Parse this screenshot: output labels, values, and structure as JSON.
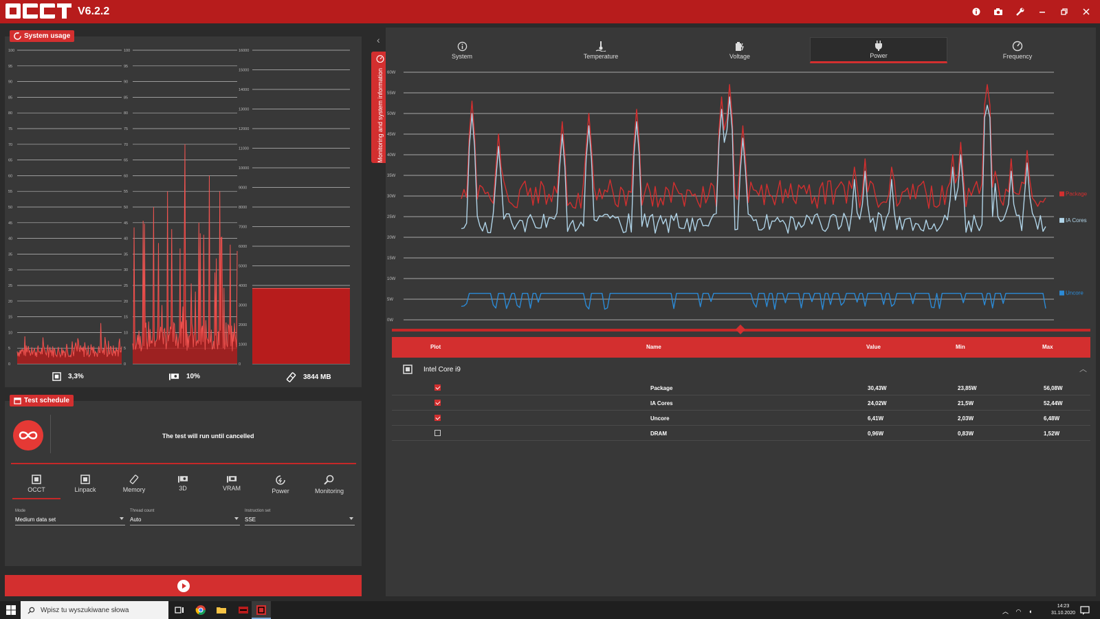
{
  "app": {
    "version": "V6.2.2"
  },
  "system_usage": {
    "title": "System usage",
    "cpu": {
      "label": "3,3%",
      "yticks": [
        "100",
        "95",
        "90",
        "85",
        "80",
        "75",
        "70",
        "65",
        "60",
        "55",
        "50",
        "45",
        "40",
        "35",
        "30",
        "25",
        "20",
        "15",
        "10",
        "5",
        "0"
      ]
    },
    "gpu": {
      "label": "10%",
      "yticks": [
        "100",
        "95",
        "90",
        "85",
        "80",
        "75",
        "70",
        "65",
        "60",
        "55",
        "50",
        "45",
        "40",
        "35",
        "30",
        "25",
        "20",
        "15",
        "10",
        "5",
        "0"
      ]
    },
    "memory": {
      "label": "3844 MB",
      "yticks": [
        "16000",
        "15000",
        "14000",
        "13000",
        "12000",
        "11000",
        "10000",
        "9000",
        "8000",
        "7000",
        "6000",
        "5000",
        "4000",
        "3000",
        "2000",
        "1000",
        "0"
      ]
    }
  },
  "side_tab": {
    "label": "Monitoring and system information"
  },
  "monitor_tabs": [
    {
      "label": "System",
      "icon": "info-icon"
    },
    {
      "label": "Temperature",
      "icon": "thermometer-icon"
    },
    {
      "label": "Voltage",
      "icon": "battery-icon"
    },
    {
      "label": "Power",
      "icon": "plug-icon"
    },
    {
      "label": "Frequency",
      "icon": "gauge-icon"
    }
  ],
  "power_chart": {
    "yticks": [
      "60W",
      "55W",
      "50W",
      "45W",
      "40W",
      "35W",
      "30W",
      "25W",
      "20W",
      "15W",
      "10W",
      "5W",
      "0W"
    ],
    "series": [
      {
        "name": "Package",
        "color": "#d32f2f",
        "value": 30.43
      },
      {
        "name": "IA Cores",
        "color": "#b0d4e8",
        "value": 24.02
      },
      {
        "name": "Uncore",
        "color": "#2b8ad6",
        "value": 6.41
      }
    ]
  },
  "sensor_table": {
    "headers": {
      "plot": "Plot",
      "name": "Name",
      "value": "Value",
      "min": "Min",
      "max": "Max"
    },
    "device": "Intel Core i9",
    "rows": [
      {
        "checked": true,
        "name": "Package",
        "value": "30,43W",
        "min": "23,85W",
        "max": "56,08W"
      },
      {
        "checked": true,
        "name": "IA Cores",
        "value": "24,02W",
        "min": "21,5W",
        "max": "52,44W"
      },
      {
        "checked": true,
        "name": "Uncore",
        "value": "6,41W",
        "min": "2,03W",
        "max": "6,48W"
      },
      {
        "checked": false,
        "name": "DRAM",
        "value": "0,96W",
        "min": "0,83W",
        "max": "1,52W"
      }
    ]
  },
  "test_schedule": {
    "title": "Test schedule",
    "message": "The test will run until cancelled",
    "tabs": [
      {
        "label": "OCCT",
        "icon": "cpu-icon"
      },
      {
        "label": "Linpack",
        "icon": "cpu-icon"
      },
      {
        "label": "Memory",
        "icon": "memory-icon"
      },
      {
        "label": "3D",
        "icon": "gpu-icon"
      },
      {
        "label": "VRAM",
        "icon": "vram-icon"
      },
      {
        "label": "Power",
        "icon": "power-cycle-icon"
      },
      {
        "label": "Monitoring",
        "icon": "magnifier-icon"
      }
    ],
    "mode": {
      "label": "Mode",
      "value": "Medium data set"
    },
    "threads": {
      "label": "Thread count",
      "value": "Auto"
    },
    "instruction": {
      "label": "Instruction set",
      "value": "SSE"
    }
  },
  "taskbar": {
    "search_placeholder": "Wpisz tu wyszukiwane słowa",
    "time": "14:23",
    "date": "31.10.2020"
  }
}
